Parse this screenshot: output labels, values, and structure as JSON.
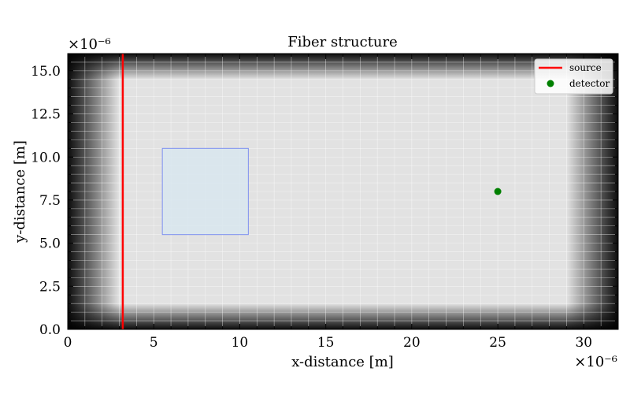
{
  "chart_data": {
    "type": "scatter",
    "title": "Fiber structure",
    "xlabel": "x-distance [m]",
    "ylabel": "y-distance [m]",
    "x_offset_label": "×10⁻⁶",
    "y_offset_label": "×10⁻⁶",
    "xlim": [
      0,
      32
    ],
    "ylim": [
      0,
      16
    ],
    "xticks": [
      0,
      5,
      10,
      15,
      20,
      25,
      30
    ],
    "xtick_labels": [
      "0",
      "5",
      "10",
      "15",
      "20",
      "25",
      "30"
    ],
    "yticks": [
      0,
      2.5,
      5,
      7.5,
      10,
      12.5,
      15
    ],
    "ytick_labels": [
      "0.0",
      "2.5",
      "5.0",
      "7.5",
      "10.0",
      "12.5",
      "15.0"
    ],
    "grid": true,
    "legend_position": "top-right",
    "background": {
      "field": "gray intensity map, dark absorbing boundary layers on all four edges fading to a light gray interior",
      "pml_thickness": [
        3,
        1.5
      ],
      "edge_color": "#000000",
      "interior_color": "#e2e2e2"
    },
    "source": {
      "label": "source",
      "x": 3.2,
      "y_range": [
        0,
        16
      ],
      "color": "#ff0000"
    },
    "detector": {
      "label": "detector",
      "x": 25,
      "y": 8,
      "color": "#008000"
    },
    "fiber_region": {
      "x_range": [
        5.5,
        10.5
      ],
      "y_range": [
        5.5,
        10.5
      ],
      "fill": "#d8e6ee",
      "stroke": "#7d8ff0"
    }
  }
}
